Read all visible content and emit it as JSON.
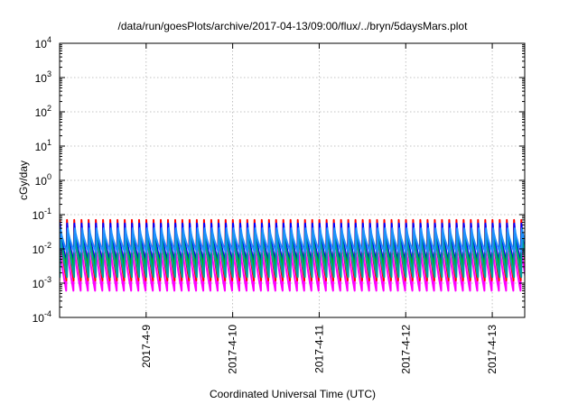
{
  "chart_data": {
    "type": "line",
    "title": "/data/run/goesPlots/archive/2017-04-13/09:00/flux/../bryn/5daysMars.plot",
    "xlabel": "Coordinated Universal Time (UTC)",
    "ylabel": "cGy/day",
    "y_scale": "log",
    "ylim": [
      0.0001,
      10000
    ],
    "y_ticks": [
      {
        "base": "10",
        "exp": "-4"
      },
      {
        "base": "10",
        "exp": "-3"
      },
      {
        "base": "10",
        "exp": "-2"
      },
      {
        "base": "10",
        "exp": "-1"
      },
      {
        "base": "10",
        "exp": "0"
      },
      {
        "base": "10",
        "exp": "1"
      },
      {
        "base": "10",
        "exp": "2"
      },
      {
        "base": "10",
        "exp": "3"
      },
      {
        "base": "10",
        "exp": "4"
      }
    ],
    "xlim": [
      "2017-04-08T00:00",
      "2017-04-13T09:00"
    ],
    "x_ticks": [
      "2017-4-9",
      "2017-4-10",
      "2017-4-11",
      "2017-4-12",
      "2017-4-13"
    ],
    "grid": true,
    "legend": "none",
    "series": [
      {
        "color": "#ff00ff",
        "peak": 0.018,
        "trough": 0.0006
      },
      {
        "color": "#ff0000",
        "peak": 0.07,
        "trough": 0.0012
      },
      {
        "color": "#0000ff",
        "peak": 0.055,
        "trough": 0.004
      },
      {
        "color": "#00c000",
        "peak": 0.03,
        "trough": 0.003
      },
      {
        "color": "#00a0a0",
        "peak": 0.035,
        "trough": 0.0015
      },
      {
        "color": "#1e90ff",
        "peak": 0.04,
        "trough": 0.008
      }
    ]
  }
}
